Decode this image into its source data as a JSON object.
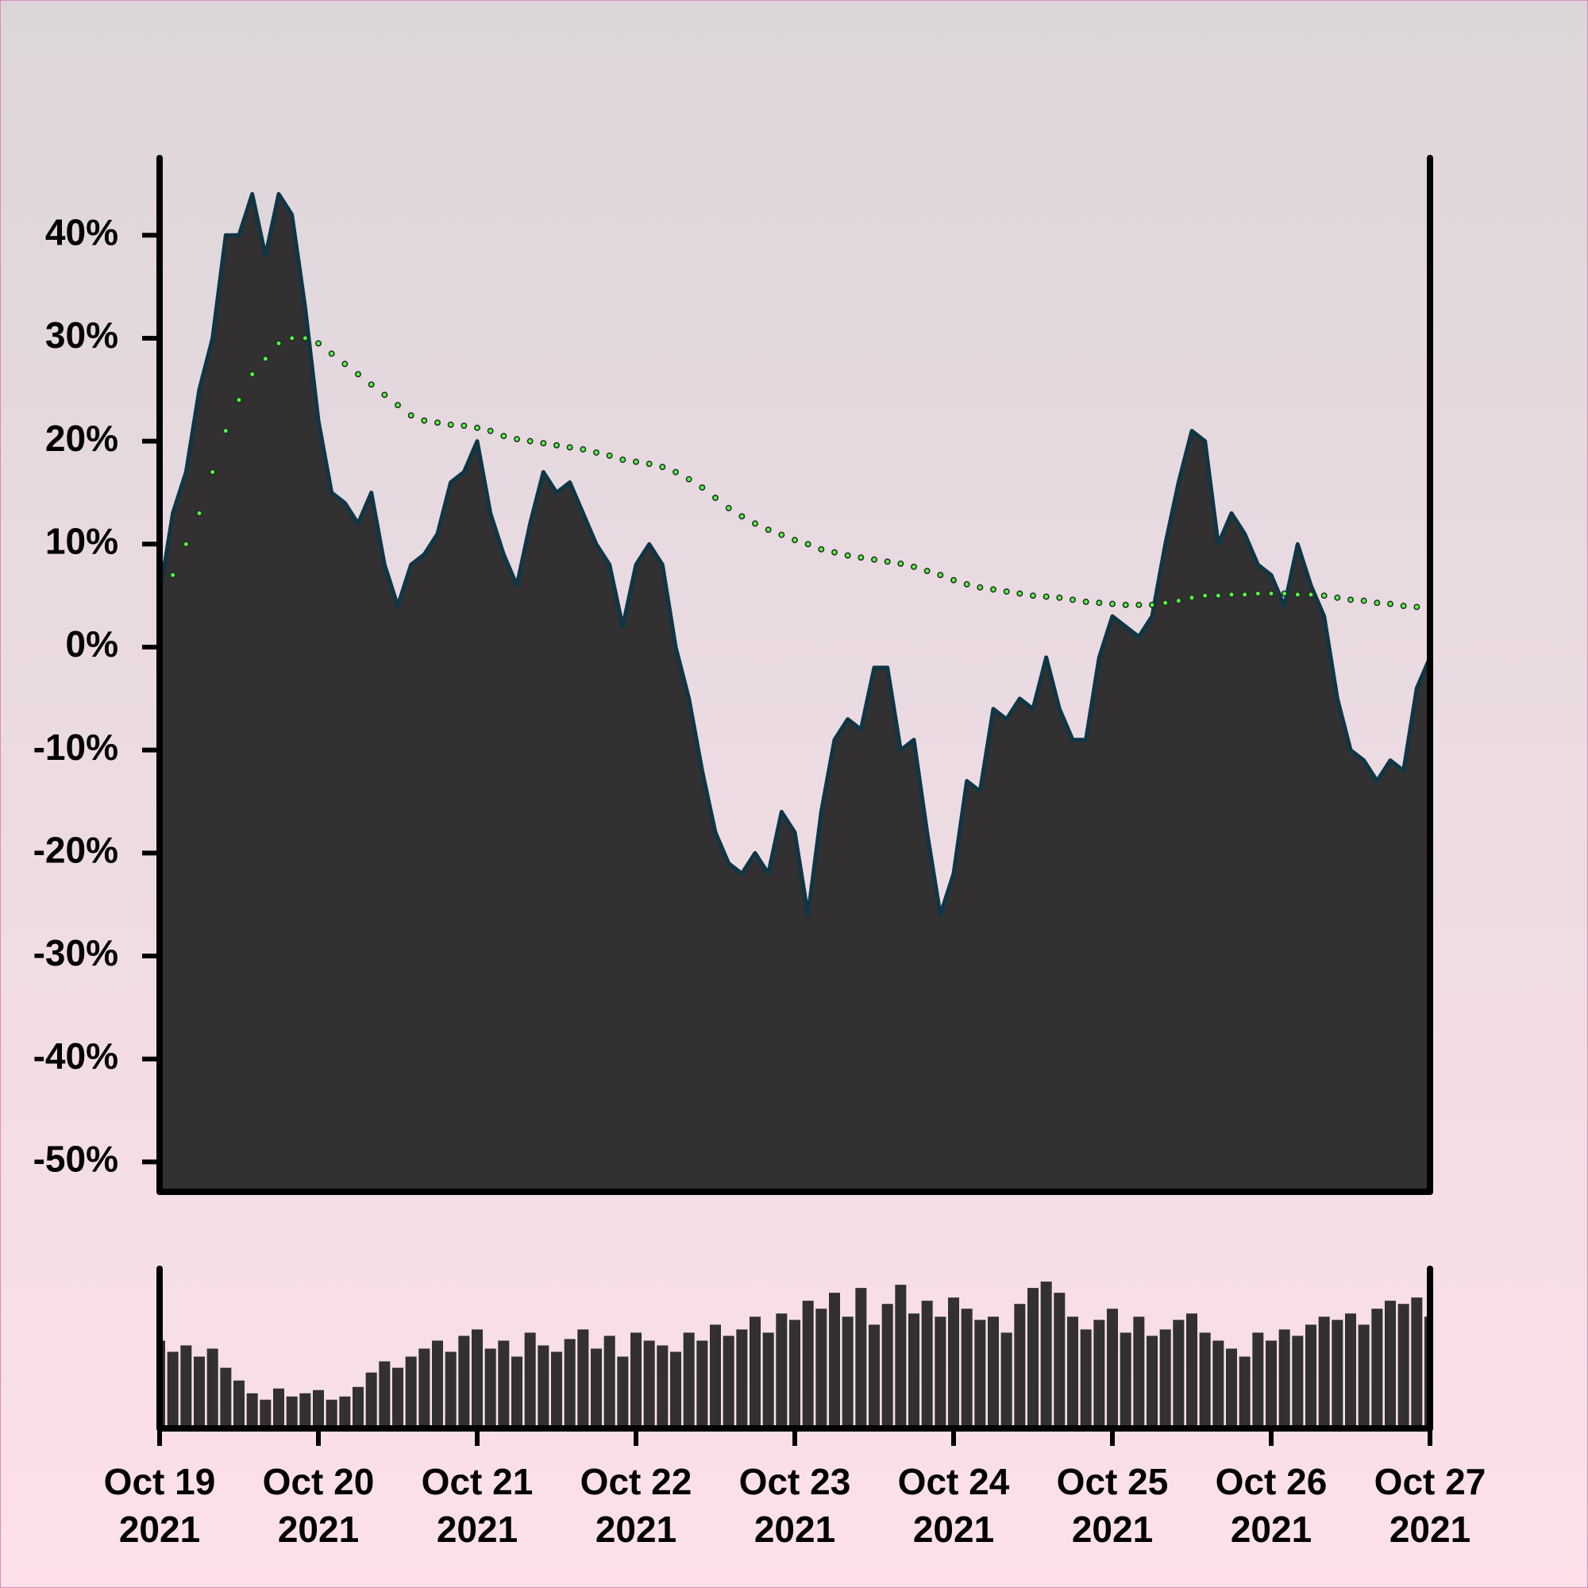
{
  "chart_data": [
    {
      "type": "area",
      "xlim": [
        0,
        96
      ],
      "ylim": [
        -52.9,
        47.5
      ],
      "yticks": [
        {
          "value": -50,
          "label": "-50%"
        },
        {
          "value": -40,
          "label": "-40%"
        },
        {
          "value": -30,
          "label": "-30%"
        },
        {
          "value": -20,
          "label": "-20%"
        },
        {
          "value": -10,
          "label": "-10%"
        },
        {
          "value": 0,
          "label": "0%"
        },
        {
          "value": 10,
          "label": "10%"
        },
        {
          "value": 20,
          "label": "20%"
        },
        {
          "value": 30,
          "label": "30%"
        },
        {
          "value": 40,
          "label": "40%"
        }
      ],
      "series": [
        {
          "type": "area",
          "color": "#323031",
          "line_color": "#0f3645",
          "values": [
            5,
            13,
            17,
            25,
            30,
            40,
            40,
            44,
            38,
            44,
            42,
            33,
            22,
            15,
            14,
            12,
            15,
            8,
            4,
            8,
            9,
            11,
            16,
            17,
            20,
            13,
            9,
            6,
            12,
            17,
            15,
            16,
            13,
            10,
            8,
            2,
            8,
            10,
            8,
            0,
            -5,
            -12,
            -18,
            -21,
            -22,
            -20,
            -22,
            -16,
            -18,
            -26,
            -16,
            -9,
            -7,
            -8,
            -2,
            -2,
            -10,
            -9,
            -18,
            -26,
            -22,
            -13,
            -14,
            -6,
            -7,
            -5,
            -6,
            -1,
            -6,
            -9,
            -9,
            -1,
            3,
            2,
            1,
            3,
            10,
            16,
            21,
            20,
            10,
            13,
            11,
            8,
            7,
            4,
            10,
            6,
            3,
            -5,
            -10,
            -11,
            -13,
            -11,
            -12,
            -4,
            -1
          ]
        },
        {
          "type": "dotted",
          "color": "#5cf04c",
          "line_color": "#17301a",
          "values": [
            5,
            7,
            10,
            13,
            17,
            21,
            24,
            26.5,
            28,
            29.5,
            30,
            30,
            29.5,
            28.5,
            27.5,
            26.5,
            25.5,
            24.5,
            23.5,
            22.5,
            22,
            21.8,
            21.6,
            21.5,
            21.3,
            21,
            20.5,
            20.2,
            20,
            19.8,
            19.6,
            19.4,
            19.2,
            18.9,
            18.6,
            18.2,
            18,
            17.8,
            17.5,
            17,
            16.3,
            15.5,
            14.5,
            13.5,
            12.7,
            12,
            11.4,
            10.9,
            10.4,
            10,
            9.5,
            9.2,
            8.9,
            8.7,
            8.5,
            8.3,
            8.1,
            7.8,
            7.4,
            7,
            6.5,
            6.1,
            5.8,
            5.6,
            5.4,
            5.2,
            5,
            4.9,
            4.8,
            4.6,
            4.4,
            4.3,
            4.2,
            4.1,
            4.1,
            4.1,
            4.3,
            4.5,
            4.8,
            5,
            5,
            5.1,
            5.1,
            5.2,
            5.2,
            5.2,
            5.1,
            5.1,
            5,
            4.8,
            4.6,
            4.5,
            4.3,
            4.2,
            4,
            3.9,
            3.8
          ]
        }
      ]
    },
    {
      "type": "bar",
      "color": "#323031",
      "xlim": [
        0,
        96
      ],
      "ylim": [
        0,
        100
      ],
      "xticks": [
        {
          "value": 0,
          "label": "Oct 19 2021"
        },
        {
          "value": 12,
          "label": "Oct 20 2021"
        },
        {
          "value": 24,
          "label": "Oct 21 2021"
        },
        {
          "value": 36,
          "label": "Oct 22 2021"
        },
        {
          "value": 48,
          "label": "Oct 23 2021"
        },
        {
          "value": 60,
          "label": "Oct 24 2021"
        },
        {
          "value": 72,
          "label": "Oct 25 2021"
        },
        {
          "value": 84,
          "label": "Oct 26 2021"
        },
        {
          "value": 96,
          "label": "Oct 27 2021"
        }
      ],
      "values": [
        55,
        48,
        52,
        45,
        50,
        38,
        30,
        22,
        18,
        25,
        20,
        22,
        24,
        18,
        20,
        26,
        35,
        42,
        38,
        45,
        50,
        55,
        48,
        58,
        62,
        50,
        55,
        45,
        60,
        52,
        48,
        56,
        62,
        50,
        58,
        45,
        60,
        55,
        52,
        48,
        60,
        55,
        65,
        58,
        62,
        70,
        60,
        72,
        68,
        80,
        75,
        85,
        70,
        88,
        65,
        78,
        90,
        72,
        80,
        70,
        82,
        75,
        68,
        70,
        60,
        78,
        88,
        92,
        85,
        70,
        62,
        68,
        75,
        60,
        70,
        58,
        62,
        68,
        72,
        60,
        55,
        50,
        45,
        60,
        55,
        62,
        58,
        65,
        70,
        68,
        72,
        65,
        75,
        80,
        78,
        82,
        70
      ]
    }
  ]
}
